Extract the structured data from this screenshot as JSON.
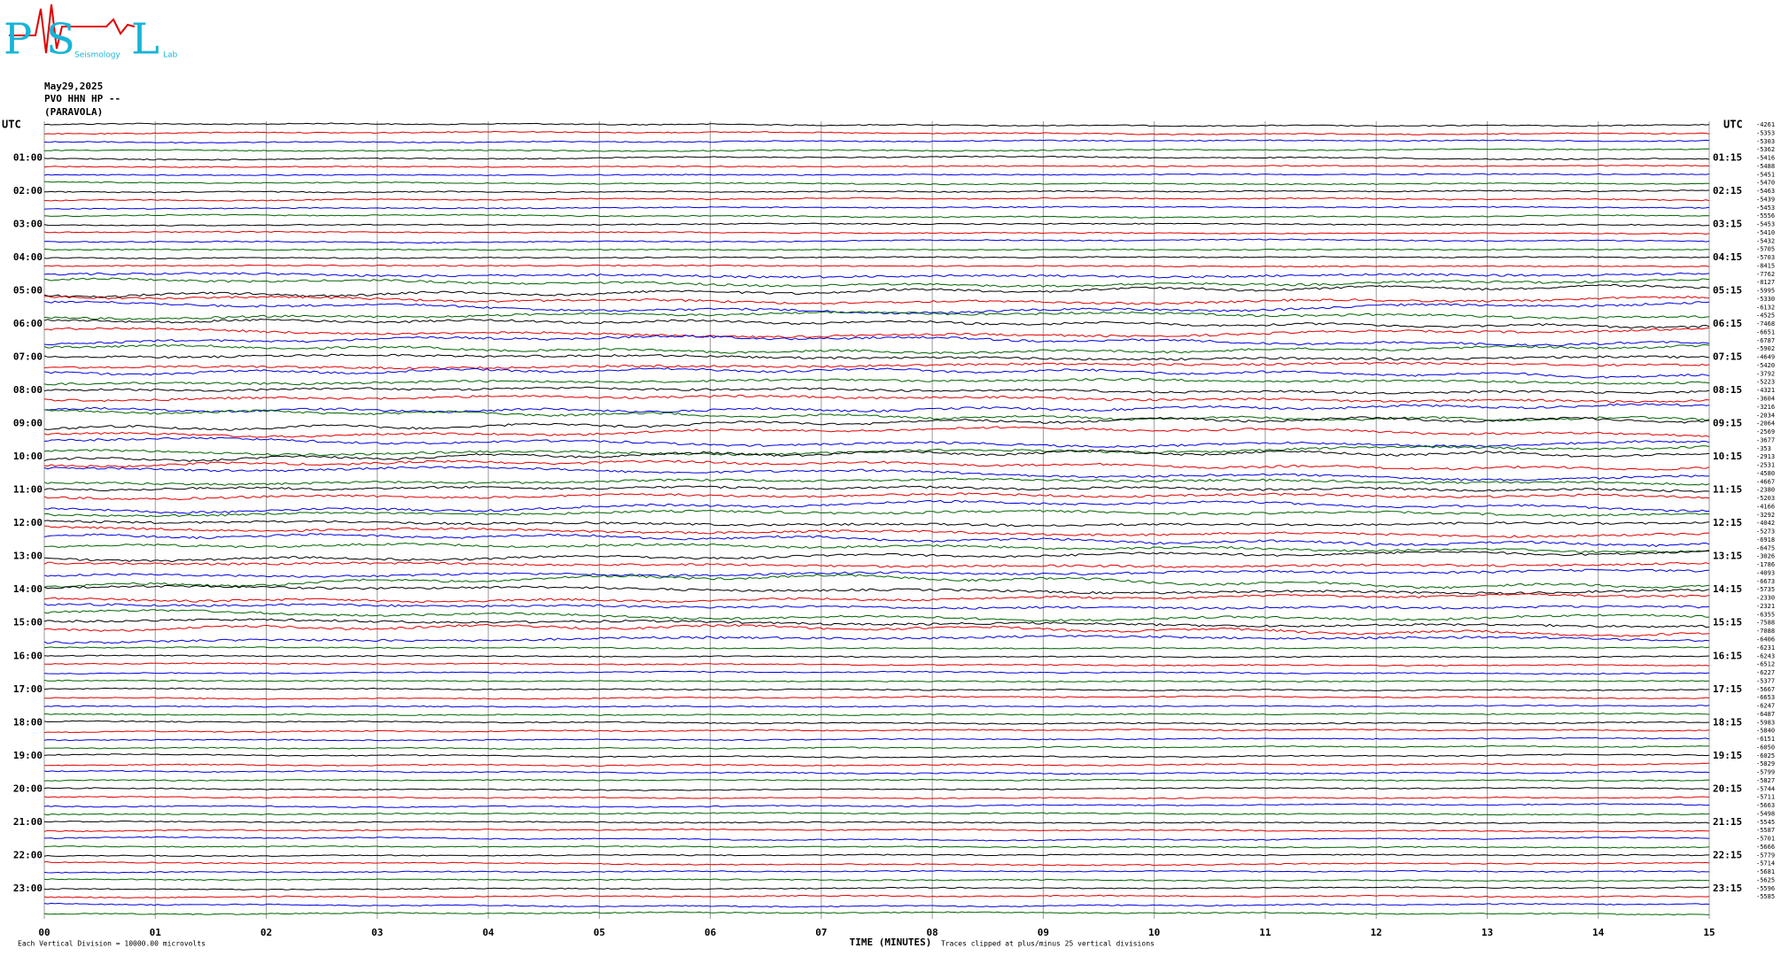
{
  "chart_data": {
    "type": "helicorder",
    "logo": {
      "letters": [
        "P",
        "S",
        "L"
      ],
      "words": [
        "Seismology",
        "Lab"
      ]
    },
    "header": [
      "May29,2025",
      "PVO HHN HP --",
      "(PARAVOLA)"
    ],
    "left_axis_label": "UTC",
    "right_axis_label": "UTC",
    "left_row_labels": [
      "01:00",
      "02:00",
      "03:00",
      "04:00",
      "05:00",
      "06:00",
      "07:00",
      "08:00",
      "09:00",
      "10:00",
      "11:00",
      "12:00",
      "13:00",
      "14:00",
      "15:00",
      "16:00",
      "17:00",
      "18:00",
      "19:00",
      "20:00",
      "21:00",
      "22:00",
      "23:00"
    ],
    "right_row_labels": [
      "01:15",
      "02:15",
      "03:15",
      "04:15",
      "05:15",
      "06:15",
      "07:15",
      "08:15",
      "09:15",
      "10:15",
      "11:15",
      "12:15",
      "13:15",
      "14:15",
      "15:15",
      "16:15",
      "17:15",
      "18:15",
      "19:15",
      "20:15",
      "21:15",
      "22:15",
      "23:15"
    ],
    "row_offsets": [
      -4261,
      -5353,
      -5303,
      -5362,
      -5416,
      -5488,
      -5451,
      -5470,
      -5463,
      -5439,
      -5453,
      -5556,
      -5453,
      -5410,
      -5432,
      -5705,
      -5703,
      -8415,
      -7762,
      -8127,
      -5995,
      -5330,
      -6132,
      -4525,
      -7468,
      -6651,
      -6787,
      -5902,
      -4649,
      -5420,
      -3792,
      -5223,
      -4321,
      -3604,
      -3216,
      -2034,
      -2064,
      -2569,
      -3677,
      -353,
      -2913,
      -2531,
      -4580,
      -4667,
      -2380,
      -5203,
      -4166,
      -3292,
      -4042,
      -5273,
      -6918,
      -6475,
      -3026,
      -1786,
      -4093,
      -6673,
      -5735,
      -2330,
      -2321,
      -6355,
      -7588,
      -7088,
      -6406,
      -6231,
      -6243,
      -6512,
      -6227,
      -5377,
      -5667,
      -6653,
      -6247,
      -6487,
      -5983,
      -5840,
      -6151,
      -6050,
      -6025,
      -5829,
      -5799,
      -5827,
      -5744,
      -5711,
      -5663,
      -5498,
      -5545,
      -5587,
      -5701,
      -5666,
      -5779,
      -5714,
      -5681,
      -5625,
      -5596,
      -5585
    ],
    "trace_colors": [
      "#000000",
      "#e00000",
      "#0000e0",
      "#006400"
    ],
    "xlabel": "TIME (MINUTES)",
    "xlim": [
      0,
      15
    ],
    "xticks": [
      {
        "value": 0,
        "label": "00"
      },
      {
        "value": 1,
        "label": "01"
      },
      {
        "value": 2,
        "label": "02"
      },
      {
        "value": 3,
        "label": "03"
      },
      {
        "value": 4,
        "label": "04"
      },
      {
        "value": 5,
        "label": "05"
      },
      {
        "value": 6,
        "label": "06"
      },
      {
        "value": 7,
        "label": "07"
      },
      {
        "value": 8,
        "label": "08"
      },
      {
        "value": 9,
        "label": "09"
      },
      {
        "value": 10,
        "label": "10"
      },
      {
        "value": 11,
        "label": "11"
      },
      {
        "value": 12,
        "label": "12"
      },
      {
        "value": 13,
        "label": "13"
      },
      {
        "value": 14,
        "label": "14"
      },
      {
        "value": 15,
        "label": "15"
      }
    ],
    "footer_left": "Each Vertical Division = 10000.00 microvolts",
    "footer_right": "Traces clipped at plus/minus 25 vertical divisions"
  }
}
